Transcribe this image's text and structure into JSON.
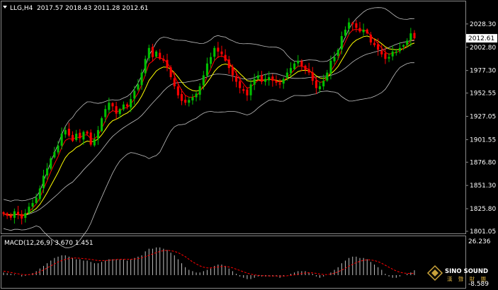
{
  "header": {
    "symbol_timeframe": "LLG,H4",
    "ohlc": "2017.57 2018.43 2011.28 2012.61"
  },
  "macd_panel": {
    "label": "MACD(12,26,9) 3.670 1.451",
    "max_label": "26.236",
    "min_label": "-8.589"
  },
  "watermark": {
    "brand": "SINO SOUND",
    "sub": "漢 聲 財 團"
  },
  "colors": {
    "background": "#000000",
    "bull_candle": "#00c000",
    "bear_candle": "#ff0000",
    "ma_short": "#ff0000",
    "ma_mid": "#ffff00",
    "bollinger": "#c0c0c0",
    "macd_hist": "#c0c0c0",
    "macd_signal": "#ff0000",
    "price_box_bg": "#ffffff"
  },
  "chart_data": [
    {
      "type": "candlestick",
      "title": "LLG,H4",
      "y_ticks": [
        1801.05,
        1825.8,
        1851.3,
        1876.8,
        1901.55,
        1927.05,
        1952.55,
        1977.3,
        2002.8,
        2028.3
      ],
      "ylim": [
        1801.05,
        2037.5
      ],
      "current_price": 2012.61,
      "grid": false,
      "close": [
        1820,
        1818,
        1816,
        1823,
        1819,
        1815,
        1821,
        1828,
        1832,
        1838,
        1848,
        1862,
        1870,
        1881,
        1888,
        1895,
        1908,
        1912,
        1906,
        1900,
        1908,
        1903,
        1910,
        1908,
        1896,
        1902,
        1912,
        1925,
        1935,
        1942,
        1938,
        1930,
        1935,
        1940,
        1938,
        1946,
        1955,
        1962,
        1975,
        1990,
        2002,
        1992,
        1998,
        1990,
        1988,
        1980,
        1970,
        1960,
        1950,
        1944,
        1942,
        1945,
        1948,
        1952,
        1960,
        1972,
        1985,
        1992,
        2002,
        1998,
        1995,
        1988,
        1980,
        1972,
        1965,
        1958,
        1955,
        1950,
        1962,
        1968,
        1972,
        1965,
        1968,
        1970,
        1966,
        1964,
        1962,
        1968,
        1975,
        1980,
        1985,
        1988,
        1982,
        1978,
        1975,
        1966,
        1958,
        1960,
        1966,
        1975,
        1988,
        1992,
        2000,
        2015,
        2022,
        2030,
        2028,
        2024,
        2020,
        2022,
        2018,
        2008,
        2005,
        2000,
        1995,
        1990,
        1992,
        1998,
        1998,
        2002,
        2005,
        2010,
        2018,
        2012.61
      ]
    },
    {
      "type": "bar",
      "title": "MACD(12,26,9)",
      "values": [
        3.67,
        1.451
      ],
      "ylim": [
        -8.589,
        26.236
      ],
      "histogram": [
        2,
        1.5,
        1,
        0.5,
        0,
        -1,
        -0.5,
        0.5,
        1.5,
        3,
        5,
        7,
        9,
        11,
        13,
        14,
        15,
        15,
        14,
        13,
        12,
        12,
        11,
        11,
        10,
        9,
        9,
        10,
        11,
        12,
        12,
        12,
        12,
        12,
        11,
        12,
        13,
        14,
        15,
        18,
        20,
        20,
        21,
        21,
        20,
        19,
        17,
        15,
        12,
        9,
        6,
        4,
        3,
        2,
        2,
        3,
        4,
        5,
        7,
        8,
        8,
        7,
        5,
        3,
        1,
        -1,
        -2,
        -3,
        -3,
        -2,
        -1,
        -1,
        -1,
        -1,
        -1,
        -1,
        -2,
        -1,
        0,
        1,
        2,
        3,
        3,
        3,
        2,
        1,
        -1,
        -2,
        -1,
        0,
        2,
        4,
        6,
        9,
        11,
        13,
        14,
        14,
        13,
        13,
        12,
        10,
        8,
        6,
        4,
        1,
        -1,
        -2,
        -2,
        -1,
        0,
        1,
        2,
        3.67
      ],
      "signal": [
        3,
        2.5,
        2,
        1.5,
        1,
        0.5,
        0.3,
        0.4,
        0.8,
        1.5,
        2.5,
        4,
        5.5,
        7,
        8.5,
        10,
        11,
        12,
        12.5,
        13,
        13,
        12.8,
        12.5,
        12.2,
        12,
        11.5,
        11,
        11,
        11,
        11.2,
        11.5,
        11.8,
        12,
        12,
        12,
        12,
        12.2,
        12.5,
        13,
        14,
        15,
        16,
        17,
        18,
        18.5,
        18.8,
        18.5,
        18,
        17,
        15.5,
        14,
        12,
        10,
        8.5,
        7,
        6,
        5.5,
        5.5,
        5.8,
        6.2,
        6.5,
        6.5,
        6.2,
        5.5,
        4.5,
        3.5,
        2.5,
        1.5,
        0.8,
        0.2,
        -0.2,
        -0.4,
        -0.5,
        -0.6,
        -0.6,
        -0.6,
        -0.7,
        -0.7,
        -0.5,
        -0.2,
        0.2,
        0.7,
        1.2,
        1.6,
        1.8,
        1.7,
        1.3,
        0.8,
        0.5,
        0.4,
        0.8,
        1.5,
        2.5,
        3.8,
        5.2,
        6.8,
        8.2,
        9.5,
        10.5,
        11.2,
        11.6,
        11.5,
        11,
        10.2,
        9,
        7.5,
        6,
        4.5,
        3.2,
        2.2,
        1.6,
        1.3,
        1.3,
        1.451
      ]
    }
  ]
}
